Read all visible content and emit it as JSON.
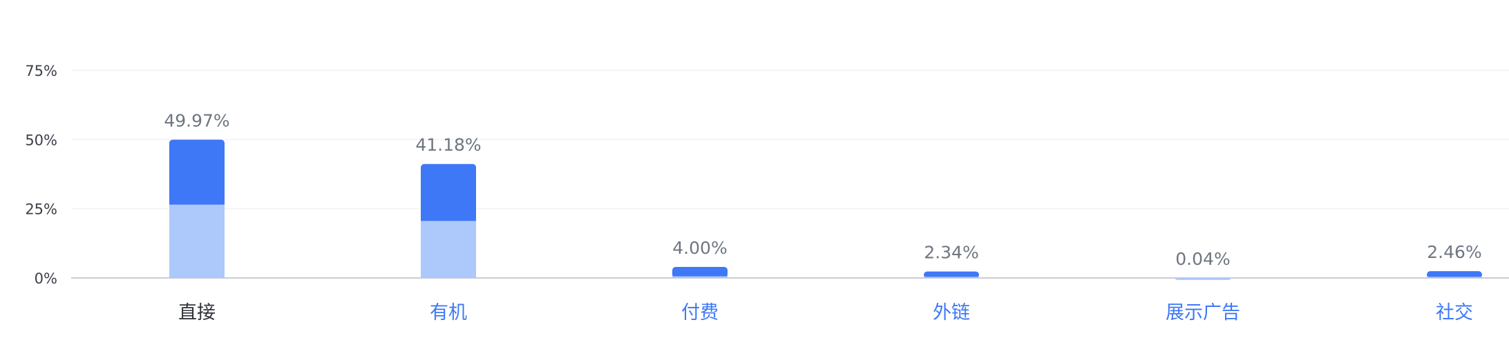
{
  "chart_data": {
    "type": "bar",
    "stacked": true,
    "categories": [
      "直接",
      "有机",
      "付费",
      "外链",
      "展示广告",
      "社交"
    ],
    "active_category_index": 0,
    "totals": [
      49.97,
      41.18,
      4.0,
      2.34,
      0.04,
      2.46
    ],
    "total_labels": [
      "49.97%",
      "41.18%",
      "4.00%",
      "2.34%",
      "0.04%",
      "2.46%"
    ],
    "series": [
      {
        "values": [
          26.5,
          20.6,
          0.6,
          0.4,
          0.04,
          0.4
        ]
      },
      {
        "values": [
          23.47,
          20.58,
          3.4,
          1.94,
          0.0,
          2.06
        ]
      }
    ],
    "yticks": [
      0,
      25,
      50,
      75
    ],
    "ytick_labels": [
      "0%",
      "25%",
      "50%",
      "75%"
    ],
    "ylim": [
      0,
      75
    ],
    "grid": true,
    "colors": {
      "series_light": "#adc8fb",
      "series_dark": "#3f78f6",
      "label_text": "#6e7681",
      "axis_tick_text": "#3c4048",
      "category_active": "#2f3237",
      "category_link": "#3f78f6",
      "gridline": "#f1f2f4",
      "baseline": "#c9ccd2"
    }
  }
}
